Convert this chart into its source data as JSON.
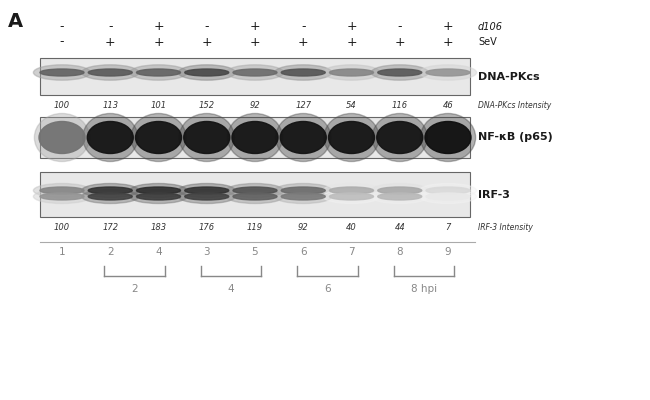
{
  "panel_label": "A",
  "fig_bg": "#ffffff",
  "d106_row": [
    "-",
    "-",
    "+",
    "-",
    "+",
    "-",
    "+",
    "-",
    "+"
  ],
  "sev_row": [
    "-",
    "+",
    "+",
    "+",
    "+",
    "+",
    "+",
    "+",
    "+"
  ],
  "dna_pkcs_intensity": [
    "100",
    "113",
    "101",
    "152",
    "92",
    "127",
    "54",
    "116",
    "46"
  ],
  "irf3_intensity": [
    "100",
    "172",
    "183",
    "176",
    "119",
    "92",
    "40",
    "44",
    "7"
  ],
  "label_dnapkcs": "DNA-PKcs",
  "label_dnapkcs_intensity": "DNA-PKcs Intensity",
  "label_nfkb": "NF-κB (p65)",
  "label_irf3": "IRF-3",
  "label_irf3_intensity": "IRF-3 Intensity",
  "label_d106": "d106",
  "label_sev": "SeV",
  "lane_numbers": [
    "1",
    "2",
    "4",
    "3",
    "5",
    "6",
    "7",
    "8",
    "9"
  ],
  "panel_bg": "#e8e8e8",
  "panel_edge": "#666666",
  "text_color_main": "#1a1a1a",
  "text_color_intensity": "#333333",
  "text_color_gray": "#888888",
  "dna_pkcs_gray_vals": [
    0.38,
    0.35,
    0.38,
    0.28,
    0.42,
    0.33,
    0.52,
    0.34,
    0.58
  ],
  "nfkb_gray_vals": [
    0.45,
    0.08,
    0.08,
    0.08,
    0.08,
    0.08,
    0.08,
    0.08,
    0.06
  ],
  "irf3_gray_vals": [
    0.52,
    0.2,
    0.18,
    0.2,
    0.32,
    0.42,
    0.68,
    0.66,
    0.85
  ]
}
